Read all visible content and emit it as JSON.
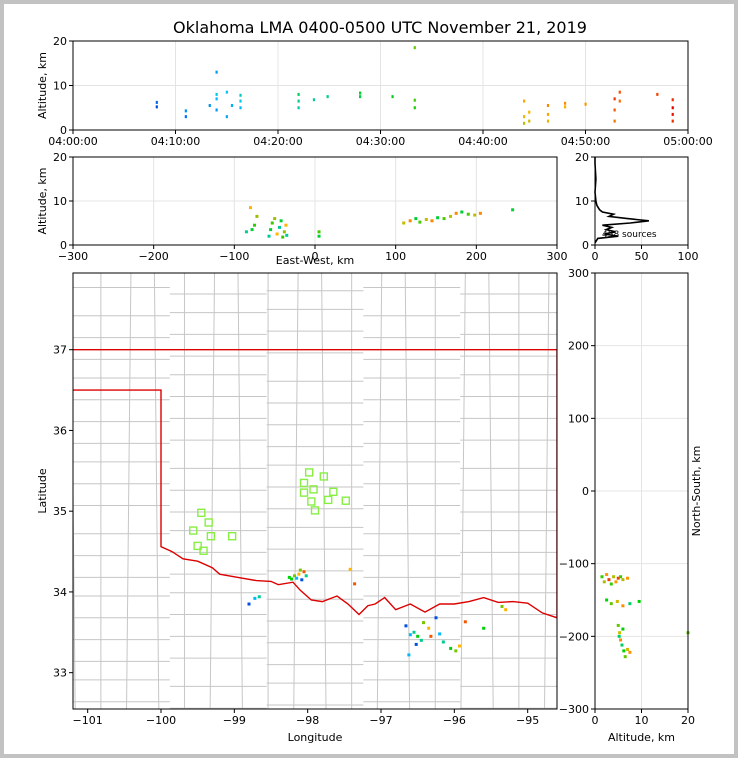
{
  "chart_data": [
    {
      "type": "scatter",
      "panel": "time-altitude",
      "title": "Oklahoma LMA 0400-0500 UTC November 21, 2019",
      "ylabel": "Altitude, km",
      "xlabel": "",
      "xlim": [
        "04:00:00",
        "05:00:00"
      ],
      "ylim": [
        0,
        20
      ],
      "xticks": [
        "04:00:00",
        "04:10:00",
        "04:20:00",
        "04:30:00",
        "04:40:00",
        "04:50:00",
        "05:00:00"
      ],
      "yticks": [
        "0",
        "10",
        "20"
      ],
      "grid": true,
      "sources": [
        {
          "t": "04:08:10",
          "alt": [
            5.2,
            6.2
          ]
        },
        {
          "t": "04:11:00",
          "alt": [
            3.0,
            4.3
          ]
        },
        {
          "t": "04:13:20",
          "alt": [
            5.5
          ]
        },
        {
          "t": "04:14:00",
          "alt": [
            4.5,
            7.0,
            8.0,
            13.0
          ]
        },
        {
          "t": "04:15:00",
          "alt": [
            3.0,
            8.5
          ]
        },
        {
          "t": "04:15:30",
          "alt": [
            5.5
          ]
        },
        {
          "t": "04:16:20",
          "alt": [
            5.0,
            6.5,
            7.8
          ]
        },
        {
          "t": "04:22:00",
          "alt": [
            5.0,
            6.5,
            8.0
          ]
        },
        {
          "t": "04:23:30",
          "alt": [
            6.8
          ]
        },
        {
          "t": "04:24:50",
          "alt": [
            7.5
          ]
        },
        {
          "t": "04:28:00",
          "alt": [
            7.5,
            8.3
          ]
        },
        {
          "t": "04:31:10",
          "alt": [
            7.5
          ]
        },
        {
          "t": "04:33:20",
          "alt": [
            5.0,
            6.7,
            18.5
          ]
        },
        {
          "t": "04:44:00",
          "alt": [
            1.5,
            3.0,
            6.5
          ]
        },
        {
          "t": "04:44:30",
          "alt": [
            2.0,
            4.0
          ]
        },
        {
          "t": "04:46:20",
          "alt": [
            2.0,
            3.5,
            5.5
          ]
        },
        {
          "t": "04:48:00",
          "alt": [
            5.2,
            6.0
          ]
        },
        {
          "t": "04:50:00",
          "alt": [
            5.8
          ]
        },
        {
          "t": "04:52:50",
          "alt": [
            2.0,
            4.5,
            7.0
          ]
        },
        {
          "t": "04:53:20",
          "alt": [
            6.5,
            8.5
          ]
        },
        {
          "t": "04:57:00",
          "alt": [
            8.0
          ]
        },
        {
          "t": "04:58:30",
          "alt": [
            2.0,
            3.5,
            5.0,
            6.8
          ]
        }
      ]
    },
    {
      "type": "scatter",
      "panel": "east-west-altitude",
      "xlabel": "East-West, km",
      "ylabel": "Altitude, km",
      "xlim": [
        -300,
        300
      ],
      "ylim": [
        0,
        20
      ],
      "xticks": [
        "−300",
        "−200",
        "−100",
        "0",
        "100",
        "200",
        "300"
      ],
      "yticks": [
        "0",
        "10",
        "20"
      ],
      "grid": true,
      "sources": [
        {
          "x": -85,
          "alt": 3.0
        },
        {
          "x": -78,
          "alt": 3.5
        },
        {
          "x": -75,
          "alt": 4.5
        },
        {
          "x": -72,
          "alt": 6.5
        },
        {
          "x": -80,
          "alt": 8.5
        },
        {
          "x": -57,
          "alt": 2.0
        },
        {
          "x": -55,
          "alt": 3.5
        },
        {
          "x": -53,
          "alt": 5.0
        },
        {
          "x": -50,
          "alt": 6.0
        },
        {
          "x": -47,
          "alt": 2.5
        },
        {
          "x": -44,
          "alt": 4.0
        },
        {
          "x": -42,
          "alt": 5.5
        },
        {
          "x": -40,
          "alt": 1.8
        },
        {
          "x": -38,
          "alt": 3.0
        },
        {
          "x": -36,
          "alt": 4.5
        },
        {
          "x": -35,
          "alt": 2.2
        },
        {
          "x": 5,
          "alt": 2.0
        },
        {
          "x": 5,
          "alt": 3.0
        },
        {
          "x": 110,
          "alt": 5.0
        },
        {
          "x": 118,
          "alt": 5.5
        },
        {
          "x": 125,
          "alt": 6.0
        },
        {
          "x": 130,
          "alt": 5.2
        },
        {
          "x": 138,
          "alt": 5.8
        },
        {
          "x": 145,
          "alt": 5.5
        },
        {
          "x": 152,
          "alt": 6.2
        },
        {
          "x": 160,
          "alt": 6.0
        },
        {
          "x": 168,
          "alt": 6.5
        },
        {
          "x": 175,
          "alt": 7.2
        },
        {
          "x": 182,
          "alt": 7.5
        },
        {
          "x": 190,
          "alt": 7.0
        },
        {
          "x": 198,
          "alt": 6.8
        },
        {
          "x": 205,
          "alt": 7.2
        },
        {
          "x": 245,
          "alt": 8.0
        }
      ]
    },
    {
      "type": "line",
      "panel": "altitude-histogram",
      "xlim": [
        0,
        100
      ],
      "ylim": [
        0,
        20
      ],
      "xticks": [
        "0",
        "50",
        "100"
      ],
      "yticks": [
        "0",
        "10",
        "20"
      ],
      "annotation": "458 sources",
      "grid": true,
      "profile": [
        {
          "alt": 0.5,
          "count": 0
        },
        {
          "alt": 1.5,
          "count": 3
        },
        {
          "alt": 2.0,
          "count": 25
        },
        {
          "alt": 2.5,
          "count": 10
        },
        {
          "alt": 3.0,
          "count": 22
        },
        {
          "alt": 3.5,
          "count": 12
        },
        {
          "alt": 4.0,
          "count": 18
        },
        {
          "alt": 4.5,
          "count": 8
        },
        {
          "alt": 5.0,
          "count": 38
        },
        {
          "alt": 5.5,
          "count": 58
        },
        {
          "alt": 6.0,
          "count": 35
        },
        {
          "alt": 6.5,
          "count": 15
        },
        {
          "alt": 7.0,
          "count": 20
        },
        {
          "alt": 7.5,
          "count": 8
        },
        {
          "alt": 8.0,
          "count": 5
        },
        {
          "alt": 9.0,
          "count": 2
        },
        {
          "alt": 10.0,
          "count": 1
        },
        {
          "alt": 12.0,
          "count": 0
        },
        {
          "alt": 15.0,
          "count": 1
        },
        {
          "alt": 18.5,
          "count": 0
        },
        {
          "alt": 20.0,
          "count": 0
        }
      ]
    },
    {
      "type": "scatter",
      "panel": "plan-view",
      "xlabel": "Longitude",
      "ylabel": "Latitude",
      "xlim": [
        -101.2,
        -94.6
      ],
      "ylim": [
        32.55,
        37.95
      ],
      "xticks": [
        "−101",
        "−100",
        "−99",
        "−98",
        "−97",
        "−96",
        "−95"
      ],
      "yticks": [
        "33",
        "34",
        "35",
        "36",
        "37"
      ],
      "stations": [
        {
          "lon": -97.98,
          "lat": 35.48
        },
        {
          "lon": -97.78,
          "lat": 35.43
        },
        {
          "lon": -98.05,
          "lat": 35.35
        },
        {
          "lon": -97.92,
          "lat": 35.27
        },
        {
          "lon": -98.05,
          "lat": 35.23
        },
        {
          "lon": -97.65,
          "lat": 35.24
        },
        {
          "lon": -97.95,
          "lat": 35.12
        },
        {
          "lon": -97.72,
          "lat": 35.14
        },
        {
          "lon": -97.48,
          "lat": 35.13
        },
        {
          "lon": -97.9,
          "lat": 35.01
        },
        {
          "lon": -99.45,
          "lat": 34.98
        },
        {
          "lon": -99.35,
          "lat": 34.86
        },
        {
          "lon": -99.56,
          "lat": 34.76
        },
        {
          "lon": -99.32,
          "lat": 34.69
        },
        {
          "lon": -99.03,
          "lat": 34.69
        },
        {
          "lon": -99.5,
          "lat": 34.57
        },
        {
          "lon": -99.42,
          "lat": 34.51
        }
      ],
      "sources": [
        {
          "lon": -98.8,
          "lat": 33.85
        },
        {
          "lon": -98.72,
          "lat": 33.92
        },
        {
          "lon": -98.66,
          "lat": 33.94
        },
        {
          "lon": -98.25,
          "lat": 34.18
        },
        {
          "lon": -98.18,
          "lat": 34.2
        },
        {
          "lon": -98.12,
          "lat": 34.22
        },
        {
          "lon": -98.05,
          "lat": 34.25
        },
        {
          "lon": -98.08,
          "lat": 34.15
        },
        {
          "lon": -98.15,
          "lat": 34.17
        },
        {
          "lon": -98.02,
          "lat": 34.2
        },
        {
          "lon": -98.22,
          "lat": 34.16
        },
        {
          "lon": -98.1,
          "lat": 34.27
        },
        {
          "lon": -97.42,
          "lat": 34.28
        },
        {
          "lon": -97.36,
          "lat": 34.1
        },
        {
          "lon": -96.66,
          "lat": 33.58
        },
        {
          "lon": -96.6,
          "lat": 33.47
        },
        {
          "lon": -96.55,
          "lat": 33.5
        },
        {
          "lon": -96.5,
          "lat": 33.45
        },
        {
          "lon": -96.42,
          "lat": 33.62
        },
        {
          "lon": -96.35,
          "lat": 33.55
        },
        {
          "lon": -96.32,
          "lat": 33.45
        },
        {
          "lon": -96.25,
          "lat": 33.68
        },
        {
          "lon": -96.2,
          "lat": 33.48
        },
        {
          "lon": -96.15,
          "lat": 33.38
        },
        {
          "lon": -96.05,
          "lat": 33.3
        },
        {
          "lon": -95.98,
          "lat": 33.27
        },
        {
          "lon": -95.93,
          "lat": 33.33
        },
        {
          "lon": -95.85,
          "lat": 33.63
        },
        {
          "lon": -96.52,
          "lat": 33.35
        },
        {
          "lon": -96.62,
          "lat": 33.22
        },
        {
          "lon": -96.45,
          "lat": 33.4
        },
        {
          "lon": -95.6,
          "lat": 33.55
        },
        {
          "lon": -95.35,
          "lat": 33.82
        },
        {
          "lon": -95.3,
          "lat": 33.78
        }
      ]
    },
    {
      "type": "scatter",
      "panel": "altitude-north-south",
      "xlabel": "Altitude, km",
      "ylabel": "North-South, km",
      "xlim": [
        0,
        20
      ],
      "ylim": [
        -300,
        300
      ],
      "xticks": [
        "0",
        "10",
        "20"
      ],
      "yticks": [
        "−300",
        "−200",
        "−100",
        "0",
        "100",
        "200",
        "300"
      ],
      "grid": true,
      "sources": [
        {
          "alt": 1.5,
          "ns": -118
        },
        {
          "alt": 2.0,
          "ns": -125
        },
        {
          "alt": 2.5,
          "ns": -115
        },
        {
          "alt": 3.0,
          "ns": -122
        },
        {
          "alt": 3.5,
          "ns": -128
        },
        {
          "alt": 4.0,
          "ns": -118
        },
        {
          "alt": 4.5,
          "ns": -125
        },
        {
          "alt": 5.0,
          "ns": -120
        },
        {
          "alt": 5.5,
          "ns": -118
        },
        {
          "alt": 6.0,
          "ns": -122
        },
        {
          "alt": 7.0,
          "ns": -120
        },
        {
          "alt": 2.5,
          "ns": -150
        },
        {
          "alt": 3.5,
          "ns": -155
        },
        {
          "alt": 4.8,
          "ns": -152
        },
        {
          "alt": 6.0,
          "ns": -158
        },
        {
          "alt": 7.5,
          "ns": -155
        },
        {
          "alt": 9.5,
          "ns": -152
        },
        {
          "alt": 5.0,
          "ns": -185
        },
        {
          "alt": 5.3,
          "ns": -195
        },
        {
          "alt": 5.5,
          "ns": -205
        },
        {
          "alt": 5.8,
          "ns": -212
        },
        {
          "alt": 6.2,
          "ns": -220
        },
        {
          "alt": 6.5,
          "ns": -228
        },
        {
          "alt": 7.0,
          "ns": -218
        },
        {
          "alt": 7.5,
          "ns": -222
        },
        {
          "alt": 5.2,
          "ns": -200
        },
        {
          "alt": 6.0,
          "ns": -190
        },
        {
          "alt": 20.0,
          "ns": -195
        }
      ]
    }
  ],
  "colors": {
    "border": "#dd0000",
    "counties": "#c6c6c6",
    "stations": "#88ee44",
    "early": "#0000cc",
    "middle": "#00cc00",
    "late": "#ff0000"
  }
}
